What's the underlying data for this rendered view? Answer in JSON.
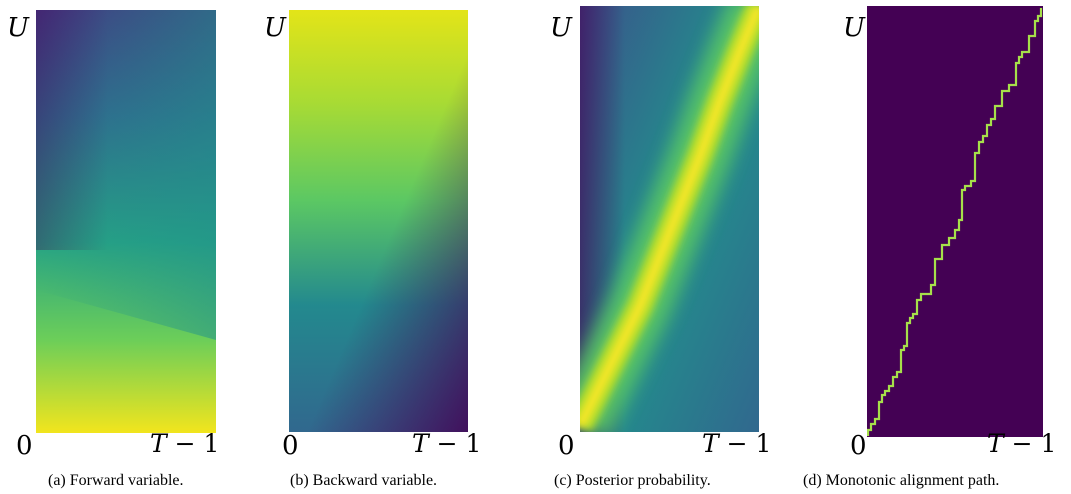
{
  "axis_labels": {
    "u": "U",
    "zero": "0",
    "t_var": "T",
    "t_minus": " − 1"
  },
  "panels": [
    {
      "caption": "(a) Forward variable."
    },
    {
      "caption": "(b) Backward variable."
    },
    {
      "caption": "(c) Posterior probability."
    },
    {
      "caption": "(d) Monotonic alignment path."
    }
  ],
  "colors": {
    "viridis_low": "#440154",
    "viridis_mid": "#21918c",
    "viridis_high": "#fde725",
    "path_line": "#a6e04a",
    "background_d": "#440154"
  },
  "chart_data": [
    {
      "type": "heatmap",
      "title": "",
      "xlabel": "",
      "ylabel": "",
      "x_ticks": [
        "0",
        "T − 1"
      ],
      "y_ticks": [
        "0",
        "U"
      ],
      "colormap": "viridis",
      "pattern": "forward variable: low (dark) top-left, high (yellow) bottom"
    },
    {
      "type": "heatmap",
      "title": "",
      "xlabel": "",
      "ylabel": "",
      "x_ticks": [
        "0",
        "T − 1"
      ],
      "y_ticks": [
        "0",
        "U"
      ],
      "colormap": "viridis",
      "pattern": "backward variable: high (yellow) top, low (dark) bottom-right"
    },
    {
      "type": "heatmap",
      "title": "",
      "xlabel": "",
      "ylabel": "",
      "x_ticks": [
        "0",
        "T − 1"
      ],
      "y_ticks": [
        "0",
        "U"
      ],
      "colormap": "viridis",
      "pattern": "posterior probability: bright diagonal band from bottom-left to top-right"
    },
    {
      "type": "heatmap",
      "title": "",
      "xlabel": "",
      "ylabel": "",
      "x_ticks": [
        "0",
        "T − 1"
      ],
      "y_ticks": [
        "0",
        "U"
      ],
      "colormap": "viridis",
      "pattern": "monotonic alignment path: staircase line from (0,0) to (T-1,U)"
    }
  ]
}
